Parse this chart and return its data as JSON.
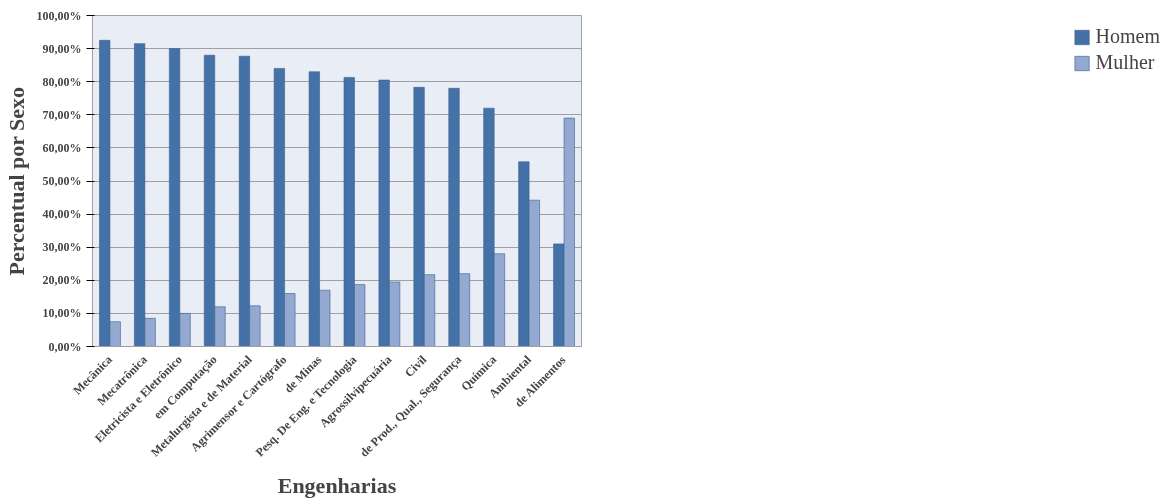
{
  "chart_data": {
    "type": "bar",
    "xlabel": "Engenharias",
    "ylabel": "Percentual por Sexo",
    "categories": [
      "Mecânica",
      "Mecatrônica",
      "Eletricista e Eletrônico",
      "em Computação",
      "Metalurgista e de Material",
      "Agrimensor e Cartógrafo",
      "de Minas",
      "Pesq. De Eng. e Tecnologia",
      "Agrossilvipecuária",
      "Civil",
      "de Prod., Qual., Segurança",
      "Química",
      "Ambiental",
      "de Alimentos"
    ],
    "series": [
      {
        "name": "Homem",
        "color": "#4472a8",
        "values": [
          92.5,
          91.5,
          90,
          88,
          87.7,
          84,
          83,
          81.3,
          80.5,
          78.3,
          78,
          72,
          55.8,
          31
        ]
      },
      {
        "name": "Mulher",
        "color": "#93a9d2",
        "values": [
          7.5,
          8.5,
          10,
          12,
          12.3,
          16,
          17,
          18.7,
          19.5,
          21.7,
          22,
          28,
          44.2,
          69
        ]
      }
    ],
    "ylim": [
      0,
      100
    ],
    "yticks": [
      {
        "value": 0,
        "label": "0,00%"
      },
      {
        "value": 10,
        "label": "10,00%"
      },
      {
        "value": 20,
        "label": "20,00%"
      },
      {
        "value": 30,
        "label": "30,00%"
      },
      {
        "value": 40,
        "label": "40,00%"
      },
      {
        "value": 50,
        "label": "50,00%"
      },
      {
        "value": 60,
        "label": "60,00%"
      },
      {
        "value": 70,
        "label": "70,00%"
      },
      {
        "value": 80,
        "label": "80,00%"
      },
      {
        "value": 90,
        "label": "90,00%"
      },
      {
        "value": 100,
        "label": "100,00%"
      }
    ],
    "grid": "y",
    "legend": "right"
  }
}
